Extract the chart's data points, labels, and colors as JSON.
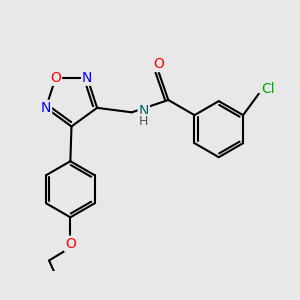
{
  "background_color": "#e8e8e8",
  "atom_colors": {
    "C": "#000000",
    "N": "#0000ff",
    "O": "#ff0000",
    "Cl": "#00aa00",
    "H": "#555555"
  },
  "bond_color": "#000000",
  "bond_width": 1.5,
  "figsize": [
    3.0,
    3.0
  ],
  "dpi": 100,
  "font_size": 10,
  "font_size_nh": 9
}
